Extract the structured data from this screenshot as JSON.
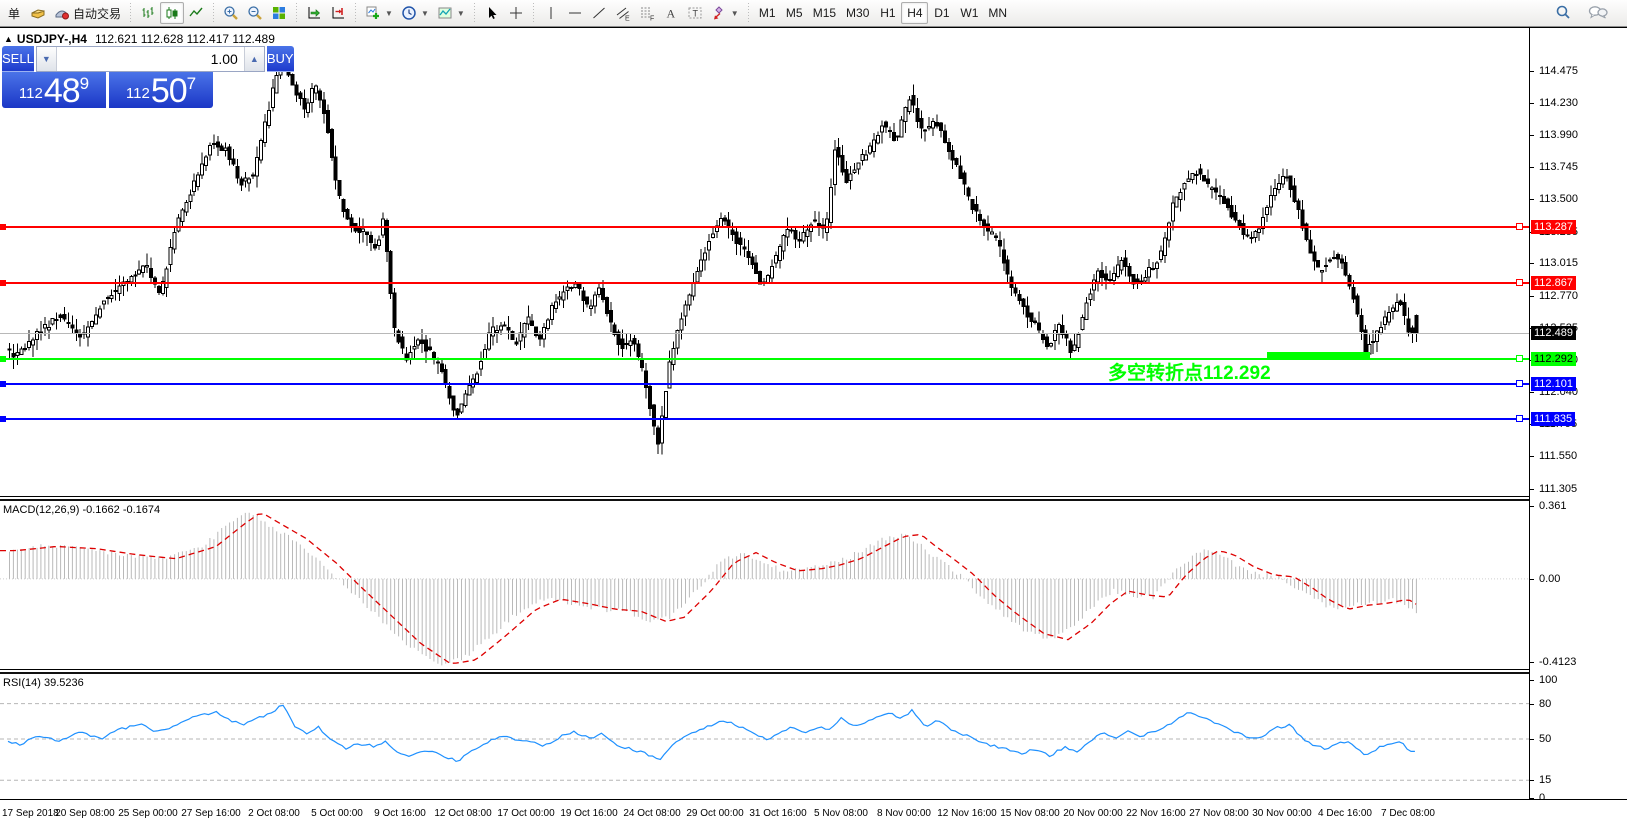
{
  "colors": {
    "accent_blue_panel_top": "#4a73e8",
    "accent_blue_panel_bottom": "#1e3bcd",
    "level_red": "#ff0000",
    "level_green": "#00ff00",
    "level_blue": "#0000ff",
    "bid_line": "#b8b8b8",
    "current_label_bg": "#000000",
    "candle_up": "#ffffff",
    "candle_down": "#000000",
    "candle_outline": "#000000",
    "macd_histogram": "#b9b9b9",
    "macd_signal": "#dd0000",
    "rsi_line": "#1e90ff",
    "annotation_green": "#00ff00"
  },
  "toolbar": {
    "groups": [
      {
        "name": "orders",
        "items": [
          {
            "name": "new-order-partial",
            "label": "单"
          },
          {
            "name": "history-book",
            "icon": "book-icon"
          },
          {
            "name": "autotrading",
            "icon": "autotrading-icon",
            "label": "自动交易"
          }
        ]
      },
      {
        "name": "chart-type",
        "items": [
          {
            "name": "bars-chart",
            "icon": "bars-icon"
          },
          {
            "name": "candles-chart",
            "icon": "candles-icon",
            "active": true
          },
          {
            "name": "line-chart",
            "icon": "line-icon"
          }
        ]
      },
      {
        "name": "zoom",
        "items": [
          {
            "name": "zoom-in",
            "icon": "zoom-in-icon"
          },
          {
            "name": "zoom-out",
            "icon": "zoom-out-icon"
          },
          {
            "name": "tile-windows",
            "icon": "tile-icon"
          }
        ]
      },
      {
        "name": "scroll",
        "items": [
          {
            "name": "auto-scroll",
            "icon": "autoscroll-icon"
          },
          {
            "name": "chart-shift",
            "icon": "shift-icon"
          }
        ]
      },
      {
        "name": "objects-quick",
        "items": [
          {
            "name": "add-indicator",
            "icon": "add-indicator-icon",
            "dropdown": true
          },
          {
            "name": "periods",
            "icon": "clock-icon",
            "dropdown": true
          },
          {
            "name": "templates",
            "icon": "template-icon",
            "dropdown": true
          }
        ]
      },
      {
        "name": "cursor",
        "items": [
          {
            "name": "cursor",
            "icon": "cursor-icon"
          },
          {
            "name": "crosshair",
            "icon": "crosshair-icon"
          }
        ]
      },
      {
        "name": "draw",
        "items": [
          {
            "name": "vertical-line",
            "icon": "vline-icon"
          },
          {
            "name": "horizontal-line",
            "icon": "hline-icon"
          },
          {
            "name": "trendline",
            "icon": "trend-icon"
          },
          {
            "name": "equidistant-channel",
            "icon": "channel-icon"
          },
          {
            "name": "fibonacci",
            "icon": "fibo-icon"
          },
          {
            "name": "text",
            "icon": "text-icon"
          },
          {
            "name": "text-label",
            "icon": "label-icon"
          },
          {
            "name": "arrows-shapes",
            "icon": "shapes-icon",
            "dropdown": true
          }
        ]
      },
      {
        "name": "timeframes",
        "items": [
          {
            "name": "tf-m1",
            "label": "M1"
          },
          {
            "name": "tf-m5",
            "label": "M5"
          },
          {
            "name": "tf-m15",
            "label": "M15"
          },
          {
            "name": "tf-m30",
            "label": "M30"
          },
          {
            "name": "tf-h1",
            "label": "H1"
          },
          {
            "name": "tf-h4",
            "label": "H4",
            "active": true
          },
          {
            "name": "tf-d1",
            "label": "D1"
          },
          {
            "name": "tf-w1",
            "label": "W1"
          },
          {
            "name": "tf-mn",
            "label": "MN"
          }
        ]
      }
    ],
    "right_items": [
      {
        "name": "search",
        "icon": "search-icon"
      },
      {
        "name": "chat",
        "icon": "chat-icon"
      }
    ]
  },
  "chart": {
    "title_text": "USDJPY-,H4",
    "ohlc_text": "112.621 112.628 112.417 112.489"
  },
  "trade_panel": {
    "sell_label": "SELL",
    "buy_label": "BUY",
    "volume": "1.00",
    "sell_price": {
      "prefix": "112",
      "big": "48",
      "sup": "9"
    },
    "buy_price": {
      "prefix": "112",
      "big": "50",
      "sup": "7"
    }
  },
  "levels": [
    {
      "label": "113.287",
      "price": 113.287,
      "color": "#ff0000",
      "text": "#ffffff"
    },
    {
      "label": "112.867",
      "price": 112.867,
      "color": "#ff0000",
      "text": "#ffffff"
    },
    {
      "label": "112.292",
      "price": 112.292,
      "color": "#00ff00",
      "text": "#000000"
    },
    {
      "label": "112.101",
      "price": 112.101,
      "color": "#0000ff",
      "text": "#ffffff"
    },
    {
      "label": "111.835",
      "price": 111.835,
      "color": "#0000ff",
      "text": "#ffffff"
    }
  ],
  "current_price": {
    "label": "112.489",
    "price": 112.489
  },
  "annotation": {
    "text": "多空转折点112.292",
    "color": "#00ff00"
  },
  "price_axis": {
    "ticks": [
      "114.475",
      "114.230",
      "113.990",
      "113.745",
      "113.500",
      "113.255",
      "113.015",
      "112.770",
      "112.525",
      "112.280",
      "112.040",
      "111.795",
      "111.550",
      "111.305"
    ]
  },
  "macd": {
    "label": "MACD(12,26,9) -0.1662 -0.1674",
    "axis_labels": [
      "0.361",
      "0.00",
      "-0.4123"
    ],
    "axis_values": [
      0.361,
      0,
      -0.4123
    ]
  },
  "rsi": {
    "label": "RSI(14) 39.5236",
    "axis_labels": [
      "100",
      "80",
      "50",
      "15",
      "0"
    ],
    "axis_values": [
      100,
      80,
      50,
      15,
      0
    ],
    "levels": [
      80,
      50,
      15
    ],
    "value": 39.5236
  },
  "time_axis": {
    "labels": [
      "17 Sep 2018",
      "20 Sep 08:00",
      "25 Sep 00:00",
      "27 Sep 16:00",
      "2 Oct 08:00",
      "5 Oct 00:00",
      "9 Oct 16:00",
      "12 Oct 08:00",
      "17 Oct 00:00",
      "19 Oct 16:00",
      "24 Oct 08:00",
      "29 Oct 00:00",
      "31 Oct 16:00",
      "5 Nov 08:00",
      "8 Nov 00:00",
      "12 Nov 16:00",
      "15 Nov 08:00",
      "20 Nov 00:00",
      "22 Nov 16:00",
      "27 Nov 08:00",
      "30 Nov 00:00",
      "4 Dec 16:00",
      "7 Dec 08:00"
    ]
  },
  "chart_data": {
    "type": "candlestick",
    "symbol": "USDJPY-",
    "timeframe": "H4",
    "bars": 359,
    "price_range": [
      111.25,
      114.8
    ],
    "last_bar": {
      "open": 112.621,
      "high": 112.628,
      "low": 112.417,
      "close": 112.489
    },
    "price_path_anchors": [
      [
        0,
        112.42
      ],
      [
        18,
        112.3
      ],
      [
        40,
        112.48
      ],
      [
        62,
        112.62
      ],
      [
        85,
        112.45
      ],
      [
        105,
        112.72
      ],
      [
        128,
        112.88
      ],
      [
        148,
        113.0
      ],
      [
        163,
        112.78
      ],
      [
        178,
        113.28
      ],
      [
        193,
        113.55
      ],
      [
        213,
        113.92
      ],
      [
        228,
        113.88
      ],
      [
        243,
        113.62
      ],
      [
        256,
        113.7
      ],
      [
        269,
        114.12
      ],
      [
        283,
        114.58
      ],
      [
        295,
        114.35
      ],
      [
        307,
        114.18
      ],
      [
        317,
        114.38
      ],
      [
        328,
        114.12
      ],
      [
        340,
        113.55
      ],
      [
        352,
        113.3
      ],
      [
        366,
        113.25
      ],
      [
        378,
        113.12
      ],
      [
        386,
        113.35
      ],
      [
        396,
        112.55
      ],
      [
        408,
        112.28
      ],
      [
        420,
        112.45
      ],
      [
        432,
        112.34
      ],
      [
        445,
        112.18
      ],
      [
        458,
        111.85
      ],
      [
        468,
        112.02
      ],
      [
        480,
        112.2
      ],
      [
        493,
        112.5
      ],
      [
        506,
        112.55
      ],
      [
        518,
        112.4
      ],
      [
        530,
        112.6
      ],
      [
        542,
        112.44
      ],
      [
        555,
        112.7
      ],
      [
        568,
        112.8
      ],
      [
        580,
        112.86
      ],
      [
        592,
        112.64
      ],
      [
        602,
        112.85
      ],
      [
        612,
        112.58
      ],
      [
        623,
        112.38
      ],
      [
        635,
        112.45
      ],
      [
        648,
        112.12
      ],
      [
        660,
        111.62
      ],
      [
        672,
        112.25
      ],
      [
        685,
        112.65
      ],
      [
        698,
        112.9
      ],
      [
        712,
        113.2
      ],
      [
        725,
        113.36
      ],
      [
        738,
        113.2
      ],
      [
        752,
        113.04
      ],
      [
        765,
        112.84
      ],
      [
        778,
        113.05
      ],
      [
        790,
        113.28
      ],
      [
        802,
        113.18
      ],
      [
        815,
        113.34
      ],
      [
        828,
        113.24
      ],
      [
        838,
        113.95
      ],
      [
        848,
        113.62
      ],
      [
        860,
        113.78
      ],
      [
        872,
        113.88
      ],
      [
        885,
        114.08
      ],
      [
        898,
        113.94
      ],
      [
        912,
        114.28
      ],
      [
        925,
        114.0
      ],
      [
        938,
        114.1
      ],
      [
        950,
        113.88
      ],
      [
        963,
        113.68
      ],
      [
        975,
        113.44
      ],
      [
        988,
        113.28
      ],
      [
        1000,
        113.18
      ],
      [
        1012,
        112.88
      ],
      [
        1025,
        112.68
      ],
      [
        1038,
        112.55
      ],
      [
        1050,
        112.38
      ],
      [
        1062,
        112.55
      ],
      [
        1075,
        112.33
      ],
      [
        1088,
        112.7
      ],
      [
        1100,
        112.94
      ],
      [
        1112,
        112.88
      ],
      [
        1125,
        113.05
      ],
      [
        1138,
        112.84
      ],
      [
        1150,
        112.95
      ],
      [
        1162,
        113.05
      ],
      [
        1175,
        113.45
      ],
      [
        1188,
        113.65
      ],
      [
        1200,
        113.72
      ],
      [
        1212,
        113.58
      ],
      [
        1225,
        113.5
      ],
      [
        1238,
        113.34
      ],
      [
        1250,
        113.2
      ],
      [
        1262,
        113.3
      ],
      [
        1275,
        113.55
      ],
      [
        1288,
        113.68
      ],
      [
        1300,
        113.45
      ],
      [
        1310,
        113.15
      ],
      [
        1322,
        112.94
      ],
      [
        1334,
        113.08
      ],
      [
        1346,
        113.0
      ],
      [
        1358,
        112.7
      ],
      [
        1368,
        112.34
      ],
      [
        1380,
        112.5
      ],
      [
        1392,
        112.64
      ],
      [
        1402,
        112.74
      ],
      [
        1410,
        112.52
      ],
      [
        1416,
        112.49
      ]
    ],
    "macd_anchors": [
      [
        0,
        0.14
      ],
      [
        40,
        0.16
      ],
      [
        80,
        0.15
      ],
      [
        120,
        0.12
      ],
      [
        160,
        0.1
      ],
      [
        200,
        0.16
      ],
      [
        228,
        0.27
      ],
      [
        245,
        0.33
      ],
      [
        262,
        0.28
      ],
      [
        290,
        0.2
      ],
      [
        320,
        0.08
      ],
      [
        345,
        -0.04
      ],
      [
        375,
        -0.18
      ],
      [
        405,
        -0.32
      ],
      [
        435,
        -0.42
      ],
      [
        460,
        -0.4
      ],
      [
        490,
        -0.28
      ],
      [
        520,
        -0.15
      ],
      [
        545,
        -0.1
      ],
      [
        570,
        -0.12
      ],
      [
        600,
        -0.15
      ],
      [
        625,
        -0.16
      ],
      [
        650,
        -0.21
      ],
      [
        668,
        -0.19
      ],
      [
        695,
        -0.06
      ],
      [
        718,
        0.08
      ],
      [
        740,
        0.13
      ],
      [
        760,
        0.08
      ],
      [
        782,
        0.04
      ],
      [
        805,
        0.05
      ],
      [
        825,
        0.07
      ],
      [
        845,
        0.1
      ],
      [
        868,
        0.16
      ],
      [
        888,
        0.21
      ],
      [
        905,
        0.22
      ],
      [
        920,
        0.16
      ],
      [
        940,
        0.09
      ],
      [
        958,
        0.02
      ],
      [
        978,
        -0.08
      ],
      [
        1000,
        -0.17
      ],
      [
        1028,
        -0.27
      ],
      [
        1052,
        -0.3
      ],
      [
        1075,
        -0.22
      ],
      [
        1095,
        -0.12
      ],
      [
        1112,
        -0.06
      ],
      [
        1132,
        -0.08
      ],
      [
        1152,
        -0.09
      ],
      [
        1170,
        0.02
      ],
      [
        1188,
        0.1
      ],
      [
        1203,
        0.14
      ],
      [
        1218,
        0.12
      ],
      [
        1238,
        0.06
      ],
      [
        1258,
        0.02
      ],
      [
        1278,
        0.01
      ],
      [
        1298,
        -0.05
      ],
      [
        1312,
        -0.1
      ],
      [
        1332,
        -0.15
      ],
      [
        1352,
        -0.13
      ],
      [
        1372,
        -0.12
      ],
      [
        1392,
        -0.1
      ],
      [
        1408,
        -0.15
      ],
      [
        1416,
        -0.17
      ]
    ],
    "rsi_anchors": [
      [
        0,
        50
      ],
      [
        20,
        45
      ],
      [
        40,
        53
      ],
      [
        60,
        48
      ],
      [
        80,
        56
      ],
      [
        100,
        50
      ],
      [
        120,
        58
      ],
      [
        140,
        63
      ],
      [
        155,
        55
      ],
      [
        170,
        60
      ],
      [
        185,
        66
      ],
      [
        200,
        70
      ],
      [
        215,
        73
      ],
      [
        228,
        67
      ],
      [
        240,
        62
      ],
      [
        255,
        66
      ],
      [
        270,
        72
      ],
      [
        283,
        79
      ],
      [
        295,
        60
      ],
      [
        308,
        54
      ],
      [
        318,
        60
      ],
      [
        330,
        50
      ],
      [
        345,
        42
      ],
      [
        360,
        46
      ],
      [
        375,
        44
      ],
      [
        386,
        49
      ],
      [
        396,
        38
      ],
      [
        410,
        35
      ],
      [
        424,
        41
      ],
      [
        438,
        38
      ],
      [
        458,
        31
      ],
      [
        470,
        40
      ],
      [
        485,
        46
      ],
      [
        500,
        53
      ],
      [
        515,
        50
      ],
      [
        530,
        48
      ],
      [
        545,
        44
      ],
      [
        560,
        52
      ],
      [
        575,
        56
      ],
      [
        590,
        50
      ],
      [
        602,
        55
      ],
      [
        615,
        45
      ],
      [
        630,
        42
      ],
      [
        648,
        37
      ],
      [
        660,
        32
      ],
      [
        672,
        45
      ],
      [
        685,
        52
      ],
      [
        700,
        58
      ],
      [
        715,
        63
      ],
      [
        725,
        66
      ],
      [
        740,
        60
      ],
      [
        755,
        54
      ],
      [
        768,
        49
      ],
      [
        780,
        55
      ],
      [
        792,
        60
      ],
      [
        805,
        55
      ],
      [
        818,
        60
      ],
      [
        830,
        57
      ],
      [
        840,
        68
      ],
      [
        852,
        61
      ],
      [
        865,
        64
      ],
      [
        878,
        70
      ],
      [
        890,
        73
      ],
      [
        902,
        67
      ],
      [
        912,
        74
      ],
      [
        925,
        61
      ],
      [
        938,
        66
      ],
      [
        950,
        59
      ],
      [
        963,
        54
      ],
      [
        975,
        50
      ],
      [
        990,
        45
      ],
      [
        1005,
        42
      ],
      [
        1020,
        38
      ],
      [
        1035,
        41
      ],
      [
        1050,
        36
      ],
      [
        1065,
        43
      ],
      [
        1078,
        38
      ],
      [
        1090,
        48
      ],
      [
        1102,
        55
      ],
      [
        1115,
        51
      ],
      [
        1128,
        58
      ],
      [
        1140,
        52
      ],
      [
        1152,
        56
      ],
      [
        1165,
        60
      ],
      [
        1178,
        68
      ],
      [
        1190,
        72
      ],
      [
        1202,
        69
      ],
      [
        1215,
        63
      ],
      [
        1228,
        59
      ],
      [
        1240,
        54
      ],
      [
        1252,
        49
      ],
      [
        1265,
        54
      ],
      [
        1278,
        60
      ],
      [
        1290,
        62
      ],
      [
        1302,
        51
      ],
      [
        1315,
        44
      ],
      [
        1328,
        41
      ],
      [
        1340,
        48
      ],
      [
        1352,
        46
      ],
      [
        1365,
        37
      ],
      [
        1378,
        42
      ],
      [
        1390,
        46
      ],
      [
        1400,
        48
      ],
      [
        1408,
        41
      ],
      [
        1416,
        39.5
      ]
    ]
  }
}
